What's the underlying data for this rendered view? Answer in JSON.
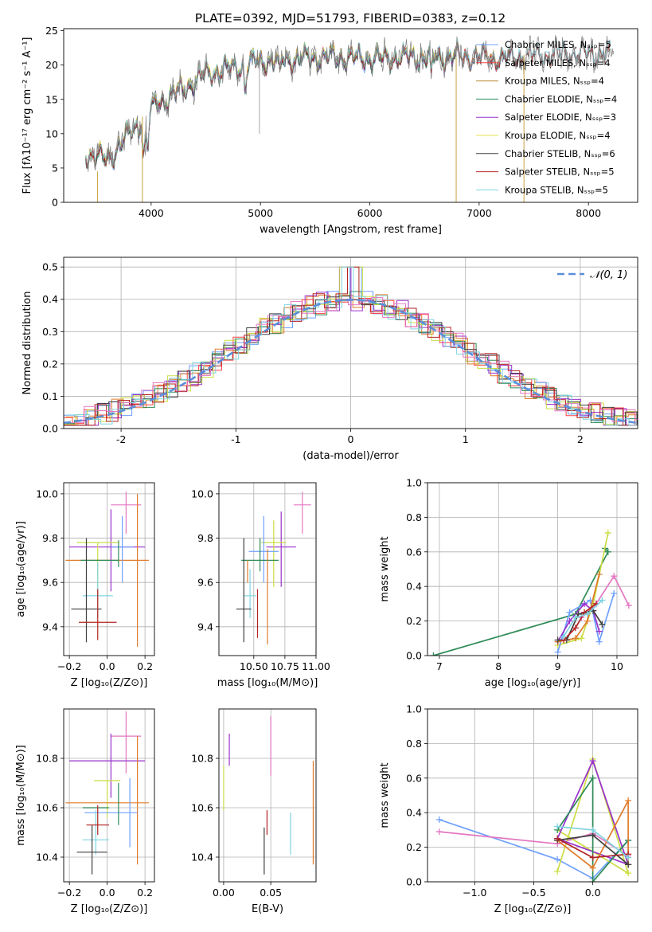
{
  "figure_title": "PLATE=0392, MJD=51793, FIBERID=0383, z=0.12",
  "chart_data": [
    {
      "id": "spectrum",
      "type": "line",
      "title": "PLATE=0392, MJD=51793, FIBERID=0383, z=0.12",
      "xlabel": "wavelength [Angstrom, rest frame]",
      "ylabel": "Flux [fλ10⁻¹⁷ erg cm⁻² s⁻¹ A⁻¹]",
      "xlim": [
        3200,
        8450
      ],
      "ylim": [
        0,
        25.3
      ],
      "xticks": [
        4000,
        5000,
        6000,
        7000,
        8000
      ],
      "yticks": [
        0,
        5,
        10,
        15,
        20,
        25
      ],
      "grid": false,
      "legend_position": "upper right",
      "continuum": {
        "x": [
          3400,
          3600,
          3800,
          3950,
          4050,
          4300,
          4500,
          4800,
          5000,
          5300,
          5600,
          6000,
          6400,
          6800,
          7200,
          7600,
          8000,
          8200
        ],
        "y": [
          7.2,
          6.3,
          10.0,
          12.6,
          14.4,
          16.6,
          18.8,
          19.8,
          20.6,
          20.9,
          21.2,
          21.0,
          21.2,
          21.3,
          21.0,
          21.5,
          21.7,
          21.6
        ]
      },
      "series": [
        {
          "name": "Chabrier MILES, Nₛₛₚ=5",
          "color": "#6fa0ff",
          "xmax": 7400
        },
        {
          "name": "Salpeter MILES, Nₛₛₚ=4",
          "color": "#ff4040",
          "xmax": 7400
        },
        {
          "name": "Kroupa MILES, Nₛₛₚ=4",
          "color": "#b8862b",
          "xmax": 7400
        },
        {
          "name": "Chabrier ELODIE, Nₛₛₚ=4",
          "color": "#2e8b57",
          "xmax": 6800
        },
        {
          "name": "Salpeter ELODIE, Nₛₛₚ=3",
          "color": "#9932cc",
          "xmax": 6800
        },
        {
          "name": "Kroupa ELODIE, Nₛₛₚ=4",
          "color": "#e6e64a",
          "xmax": 6800
        },
        {
          "name": "Chabrier STELIB, Nₛₛₚ=6",
          "color": "#404040",
          "xmax": 8200
        },
        {
          "name": "Salpeter STELIB, Nₛₛₚ=5",
          "color": "#b22222",
          "xmax": 8200
        },
        {
          "name": "Kroupa STELIB, Nₛₛₚ=5",
          "color": "#7fd4e0",
          "xmax": 8200
        }
      ],
      "data_color": "#808080"
    },
    {
      "id": "residuals",
      "type": "histogram",
      "xlabel": "(data-model)/error",
      "ylabel": "Normed distribution",
      "xlim": [
        -2.5,
        2.5
      ],
      "ylim": [
        0,
        0.53
      ],
      "xticks": [
        -2,
        -1,
        0,
        1,
        2
      ],
      "yticks": [
        0.0,
        0.1,
        0.2,
        0.3,
        0.4,
        0.5
      ],
      "grid": true,
      "legend_position": "upper right",
      "reference": {
        "name": "𝒩(0, 1)",
        "color": "#5b8fd9",
        "style": "dashed"
      },
      "bin_width": 0.1,
      "series_colors": [
        "#6fa0ff",
        "#ff4040",
        "#e07b2a",
        "#2e8b57",
        "#9932cc",
        "#ccdd44",
        "#404040",
        "#b22222",
        "#7fd4e0",
        "#e377c2"
      ]
    },
    {
      "id": "age_vs_Z",
      "type": "errorbar",
      "xlabel": "Z [log₁₀(Z/Z⊙)]",
      "ylabel": "age  [log₁₀(age/yr)]",
      "xlim": [
        -0.23,
        0.25
      ],
      "ylim": [
        9.27,
        10.05
      ],
      "xticks": [
        -0.2,
        0.0,
        0.2
      ],
      "xticklabels": [
        "−0.2",
        "0.0",
        "0.2"
      ],
      "yticks": [
        9.4,
        9.6,
        9.8,
        10.0
      ],
      "grid": true,
      "points": [
        {
          "x": 0.1,
          "y": 9.95,
          "xerr": 0.08,
          "yerr_lo": 0.13,
          "yerr_hi": 0.06,
          "color": "#e377c2"
        },
        {
          "x": 0.0,
          "y": 9.76,
          "xerr": 0.2,
          "yerr_lo": 0.0,
          "yerr_hi": 0.0,
          "color": "#9932cc"
        },
        {
          "x": 0.02,
          "y": 9.76,
          "xerr": 0.0,
          "yerr_lo": 0.2,
          "yerr_hi": 0.17,
          "color": "#9932cc"
        },
        {
          "x": -0.05,
          "y": 9.78,
          "xerr": 0.11,
          "yerr_lo": 0.2,
          "yerr_hi": 0.0,
          "color": "#ccdd44"
        },
        {
          "x": 0.0,
          "y": 9.7,
          "xerr": 0.22,
          "yerr_lo": 0.0,
          "yerr_hi": 0.0,
          "color": "#e07b2a"
        },
        {
          "x": 0.16,
          "y": 9.7,
          "xerr": 0.0,
          "yerr_lo": 0.39,
          "yerr_hi": 0.3,
          "color": "#e07b2a"
        },
        {
          "x": 0.08,
          "y": 9.76,
          "xerr": 0.06,
          "yerr_lo": 0.16,
          "yerr_hi": 0.14,
          "color": "#6fa0ff"
        },
        {
          "x": 0.06,
          "y": 9.72,
          "xerr": 0.0,
          "yerr_lo": 0.05,
          "yerr_hi": 0.07,
          "color": "#2e8b57"
        },
        {
          "x": -0.04,
          "y": 9.7,
          "xerr": 0.1,
          "yerr_lo": 0.0,
          "yerr_hi": 0.0,
          "color": "#2e8b57"
        },
        {
          "x": -0.05,
          "y": 9.54,
          "xerr": 0.08,
          "yerr_lo": 0.1,
          "yerr_hi": 0.15,
          "color": "#7fd4e0"
        },
        {
          "x": -0.11,
          "y": 9.48,
          "xerr": 0.08,
          "yerr_lo": 0.15,
          "yerr_hi": 0.32,
          "color": "#404040"
        },
        {
          "x": -0.05,
          "y": 9.42,
          "xerr": 0.1,
          "yerr_lo": 0.08,
          "yerr_hi": 0.15,
          "color": "#b22222"
        }
      ]
    },
    {
      "id": "age_vs_mass",
      "type": "errorbar",
      "xlabel": "mass [log₁₀(M/M⊙)]",
      "ylabel": "",
      "xlim": [
        10.22,
        11.0
      ],
      "ylim": [
        9.27,
        10.05
      ],
      "xticks": [
        10.5,
        10.75,
        11.0
      ],
      "xticklabels": [
        "10.50",
        "10.75",
        "11.00"
      ],
      "yticks": [
        9.4,
        9.6,
        9.8,
        10.0
      ],
      "grid": true,
      "points": [
        {
          "x": 10.89,
          "y": 9.95,
          "xerr": 0.07,
          "yerr_lo": 0.13,
          "yerr_hi": 0.06,
          "color": "#e377c2"
        },
        {
          "x": 10.72,
          "y": 9.76,
          "xerr": 0.12,
          "yerr_lo": 0.18,
          "yerr_hi": 0.16,
          "color": "#9932cc"
        },
        {
          "x": 10.66,
          "y": 9.78,
          "xerr": 0.1,
          "yerr_lo": 0.2,
          "yerr_hi": 0.1,
          "color": "#ccdd44"
        },
        {
          "x": 10.58,
          "y": 9.74,
          "xerr": 0.12,
          "yerr_lo": 0.14,
          "yerr_hi": 0.16,
          "color": "#6fa0ff"
        },
        {
          "x": 10.55,
          "y": 9.7,
          "xerr": 0.15,
          "yerr_lo": 0.05,
          "yerr_hi": 0.1,
          "color": "#2e8b57"
        },
        {
          "x": 10.61,
          "y": 9.7,
          "xerr": 0.0,
          "yerr_lo": 0.38,
          "yerr_hi": 0.05,
          "color": "#e07b2a"
        },
        {
          "x": 10.45,
          "y": 9.7,
          "xerr": 0.0,
          "yerr_lo": 0.1,
          "yerr_hi": 0.0,
          "color": "#e07b2a"
        },
        {
          "x": 10.47,
          "y": 9.54,
          "xerr": 0.05,
          "yerr_lo": 0.1,
          "yerr_hi": 0.12,
          "color": "#7fd4e0"
        },
        {
          "x": 10.42,
          "y": 9.48,
          "xerr": 0.06,
          "yerr_lo": 0.15,
          "yerr_hi": 0.32,
          "color": "#404040"
        },
        {
          "x": 10.53,
          "y": 9.42,
          "xerr": 0.0,
          "yerr_lo": 0.07,
          "yerr_hi": 0.15,
          "color": "#b22222"
        }
      ]
    },
    {
      "id": "mass_weight_vs_age",
      "type": "line",
      "xlabel": "age  [log₁₀(age/yr)]",
      "ylabel": "mass weight",
      "xlim": [
        6.8,
        10.35
      ],
      "ylim": [
        0,
        1.0
      ],
      "xticks": [
        7,
        8,
        9,
        10
      ],
      "yticks": [
        0.0,
        0.2,
        0.4,
        0.6,
        0.8,
        1.0
      ],
      "grid": true,
      "series": [
        {
          "color": "#2e8b57",
          "x": [
            6.9,
            9.3,
            9.85,
            9.8
          ],
          "y": [
            0.0,
            0.24,
            0.6,
            0.62
          ]
        },
        {
          "color": "#e377c2",
          "x": [
            9.4,
            9.65,
            9.95,
            10.2
          ],
          "y": [
            0.22,
            0.3,
            0.46,
            0.29
          ]
        },
        {
          "color": "#ccdd44",
          "x": [
            9.0,
            9.4,
            9.6,
            9.85
          ],
          "y": [
            0.06,
            0.1,
            0.3,
            0.71
          ]
        },
        {
          "color": "#6fa0ff",
          "x": [
            9.0,
            9.2,
            9.55,
            9.7,
            9.95
          ],
          "y": [
            0.02,
            0.25,
            0.32,
            0.08,
            0.36
          ]
        },
        {
          "color": "#9932cc",
          "x": [
            9.0,
            9.2,
            9.45,
            9.6,
            9.7
          ],
          "y": [
            0.08,
            0.2,
            0.3,
            0.26,
            0.14
          ]
        },
        {
          "color": "#e07b2a",
          "x": [
            9.0,
            9.3,
            9.5,
            9.7
          ],
          "y": [
            0.08,
            0.1,
            0.2,
            0.47
          ]
        },
        {
          "color": "#404040",
          "x": [
            9.0,
            9.15,
            9.35,
            9.6,
            9.75
          ],
          "y": [
            0.09,
            0.09,
            0.24,
            0.26,
            0.18
          ]
        },
        {
          "color": "#b22222",
          "x": [
            9.1,
            9.3,
            9.45,
            9.65
          ],
          "y": [
            0.09,
            0.16,
            0.25,
            0.3
          ]
        },
        {
          "color": "#7fd4e0",
          "x": [
            9.1,
            9.3,
            9.5,
            9.75
          ],
          "y": [
            0.11,
            0.22,
            0.24,
            0.32
          ]
        }
      ]
    },
    {
      "id": "mass_vs_Z",
      "type": "errorbar",
      "xlabel": "Z [log₁₀(Z/Z⊙)]",
      "ylabel": "mass [log₁₀(M/M⊙)]",
      "xlim": [
        -0.23,
        0.25
      ],
      "ylim": [
        10.3,
        11.0
      ],
      "xticks": [
        -0.2,
        0.0,
        0.2
      ],
      "xticklabels": [
        "−0.2",
        "0.0",
        "0.2"
      ],
      "yticks": [
        10.4,
        10.6,
        10.8
      ],
      "grid": true,
      "points": [
        {
          "x": 0.1,
          "y": 10.89,
          "xerr": 0.08,
          "yerr_lo": 0.15,
          "yerr_hi": 0.1,
          "color": "#e377c2"
        },
        {
          "x": 0.0,
          "y": 10.79,
          "xerr": 0.2,
          "yerr_lo": 0.0,
          "yerr_hi": 0.0,
          "color": "#9932cc"
        },
        {
          "x": 0.02,
          "y": 10.79,
          "xerr": 0.0,
          "yerr_lo": 0.15,
          "yerr_hi": 0.11,
          "color": "#9932cc"
        },
        {
          "x": 0.0,
          "y": 10.71,
          "xerr": 0.07,
          "yerr_lo": 0.15,
          "yerr_hi": 0.0,
          "color": "#ccdd44"
        },
        {
          "x": 0.0,
          "y": 10.62,
          "xerr": 0.22,
          "yerr_lo": 0.0,
          "yerr_hi": 0.0,
          "color": "#e07b2a"
        },
        {
          "x": 0.16,
          "y": 10.62,
          "xerr": 0.0,
          "yerr_lo": 0.25,
          "yerr_hi": 0.27,
          "color": "#e07b2a"
        },
        {
          "x": 0.02,
          "y": 10.58,
          "xerr": 0.14,
          "yerr_lo": 0.0,
          "yerr_hi": 0.0,
          "color": "#6fa0ff"
        },
        {
          "x": 0.12,
          "y": 10.58,
          "xerr": 0.0,
          "yerr_lo": 0.14,
          "yerr_hi": 0.14,
          "color": "#6fa0ff"
        },
        {
          "x": 0.06,
          "y": 10.6,
          "xerr": 0.0,
          "yerr_lo": 0.07,
          "yerr_hi": 0.1,
          "color": "#2e8b57"
        },
        {
          "x": -0.06,
          "y": 10.6,
          "xerr": 0.07,
          "yerr_lo": 0.0,
          "yerr_hi": 0.0,
          "color": "#2e8b57"
        },
        {
          "x": -0.06,
          "y": 10.47,
          "xerr": 0.07,
          "yerr_lo": 0.06,
          "yerr_hi": 0.12,
          "color": "#7fd4e0"
        },
        {
          "x": -0.08,
          "y": 10.42,
          "xerr": 0.08,
          "yerr_lo": 0.09,
          "yerr_hi": 0.11,
          "color": "#404040"
        },
        {
          "x": -0.05,
          "y": 10.53,
          "xerr": 0.06,
          "yerr_lo": 0.04,
          "yerr_hi": 0.08,
          "color": "#b22222"
        }
      ]
    },
    {
      "id": "mass_vs_ebv",
      "type": "errorbar",
      "xlabel": "E(B-V)",
      "ylabel": "",
      "xlim": [
        -0.005,
        0.098
      ],
      "ylim": [
        10.3,
        11.0
      ],
      "xticks": [
        0.0,
        0.05
      ],
      "xticklabels": [
        "0.00",
        "0.05"
      ],
      "yticks": [
        10.4,
        10.6,
        10.8
      ],
      "grid": true,
      "points": [
        {
          "x": 0.0,
          "y": 10.71,
          "xerr": 0,
          "yerr_lo": 0.12,
          "yerr_hi": 0.06,
          "color": "#ccdd44"
        },
        {
          "x": 0.006,
          "y": 10.82,
          "xerr": 0,
          "yerr_lo": 0.05,
          "yerr_hi": 0.08,
          "color": "#9932cc"
        },
        {
          "x": 0.05,
          "y": 10.85,
          "xerr": 0,
          "yerr_lo": 0.12,
          "yerr_hi": 0.12,
          "color": "#e377c2"
        },
        {
          "x": 0.046,
          "y": 10.53,
          "xerr": 0,
          "yerr_lo": 0.04,
          "yerr_hi": 0.06,
          "color": "#b22222"
        },
        {
          "x": 0.043,
          "y": 10.42,
          "xerr": 0,
          "yerr_lo": 0.09,
          "yerr_hi": 0.1,
          "color": "#404040"
        },
        {
          "x": 0.071,
          "y": 10.47,
          "xerr": 0,
          "yerr_lo": 0.06,
          "yerr_hi": 0.11,
          "color": "#7fd4e0"
        },
        {
          "x": 0.095,
          "y": 10.58,
          "xerr": 0,
          "yerr_lo": 0.21,
          "yerr_hi": 0.21,
          "color": "#e07b2a"
        }
      ]
    },
    {
      "id": "mass_weight_vs_Z",
      "type": "line",
      "xlabel": "Z [log₁₀(Z/Z⊙)]",
      "ylabel": "mass weight",
      "xlim": [
        -1.4,
        0.38
      ],
      "ylim": [
        0,
        1.0
      ],
      "xticks": [
        -1.0,
        -0.5,
        0.0
      ],
      "xticklabels": [
        "−1.0",
        "−0.5",
        "0.0"
      ],
      "yticks": [
        0.0,
        0.2,
        0.4,
        0.6,
        0.8,
        1.0
      ],
      "grid": true,
      "series": [
        {
          "color": "#6fa0ff",
          "x": [
            -1.3,
            -0.3,
            0.0,
            0.3,
            0.3
          ],
          "y": [
            0.36,
            0.13,
            0.02,
            0.24,
            0.1
          ]
        },
        {
          "color": "#e377c2",
          "x": [
            -1.3,
            -0.3,
            0.0,
            0.3
          ],
          "y": [
            0.29,
            0.22,
            0.28,
            0.15
          ]
        },
        {
          "color": "#ccdd44",
          "x": [
            -0.3,
            0.0,
            0.3,
            -0.3
          ],
          "y": [
            0.06,
            0.71,
            0.05,
            0.3
          ]
        },
        {
          "color": "#9932cc",
          "x": [
            -0.3,
            0.0,
            0.3,
            -0.3
          ],
          "y": [
            0.25,
            0.7,
            0.1,
            0.25
          ]
        },
        {
          "color": "#2e8b57",
          "x": [
            -0.3,
            0.0,
            0.0,
            0.3
          ],
          "y": [
            0.3,
            0.6,
            0.0,
            0.24
          ]
        },
        {
          "color": "#e07b2a",
          "x": [
            -0.3,
            0.0,
            0.3,
            0.3
          ],
          "y": [
            0.24,
            0.08,
            0.47,
            0.1
          ]
        },
        {
          "color": "#404040",
          "x": [
            -0.3,
            0.0,
            0.3
          ],
          "y": [
            0.24,
            0.27,
            0.1
          ]
        },
        {
          "color": "#b22222",
          "x": [
            -0.3,
            0.0,
            0.3
          ],
          "y": [
            0.25,
            0.14,
            0.16
          ]
        },
        {
          "color": "#7fd4e0",
          "x": [
            -0.3,
            0.0,
            0.3
          ],
          "y": [
            0.32,
            0.3,
            0.14
          ]
        }
      ]
    }
  ]
}
